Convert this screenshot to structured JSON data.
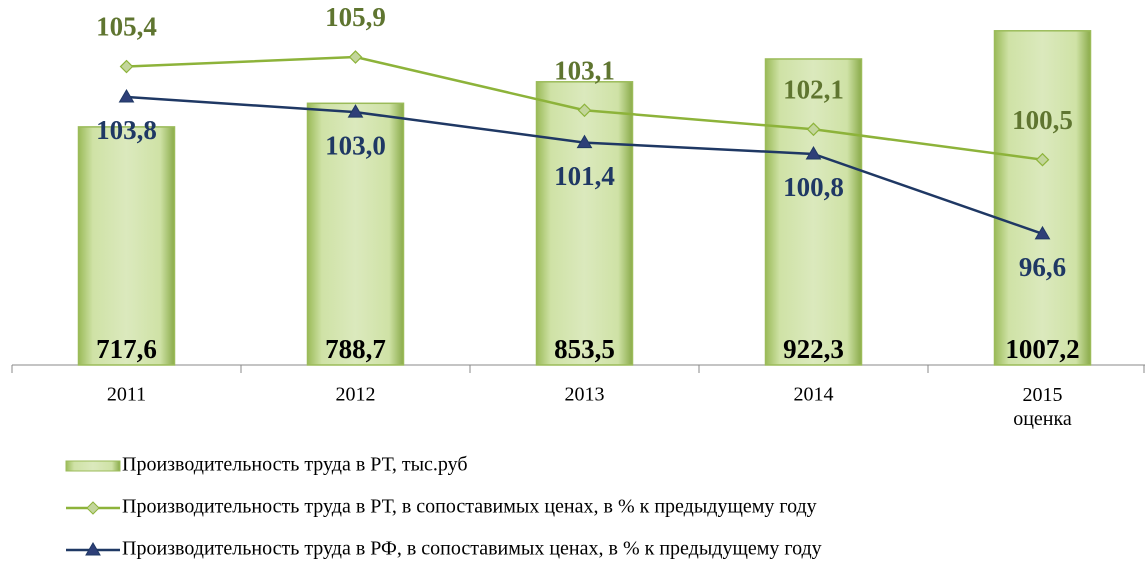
{
  "chart_data": {
    "type": "bar",
    "categories": [
      "2011",
      "2012",
      "2013",
      "2014",
      "2015\nоценка"
    ],
    "ylim": [
      0,
      1100
    ],
    "y2lim": [
      89.7,
      108.9
    ],
    "series": [
      {
        "name": "Производительность труда в РТ, тыс.руб",
        "type": "bar",
        "color": "#9bbb59",
        "values": [
          717.6,
          788.7,
          853.5,
          922.3,
          1007.2
        ],
        "value_labels": [
          "717,6",
          "788,7",
          "853,5",
          "922,3",
          "1007,2"
        ]
      },
      {
        "name": "Производительность труда в РТ, в сопоставимых ценах, в % к предыдущему году",
        "type": "line",
        "axis": "y2",
        "color": "#8db33a",
        "marker": "diamond",
        "values": [
          105.4,
          105.9,
          103.1,
          102.1,
          100.5
        ],
        "value_labels": [
          "105,4",
          "105,9",
          "103,1",
          "102,1",
          "100,5"
        ]
      },
      {
        "name": "Производительность труда в РФ, в сопоставимых ценах, в % к предыдущему году",
        "type": "line",
        "axis": "y2",
        "color": "#1f3864",
        "marker": "triangle",
        "values": [
          103.8,
          103.0,
          101.4,
          100.8,
          96.6
        ],
        "value_labels": [
          "103,8",
          "103,0",
          "101,4",
          "100,8",
          "96,6"
        ]
      }
    ]
  }
}
